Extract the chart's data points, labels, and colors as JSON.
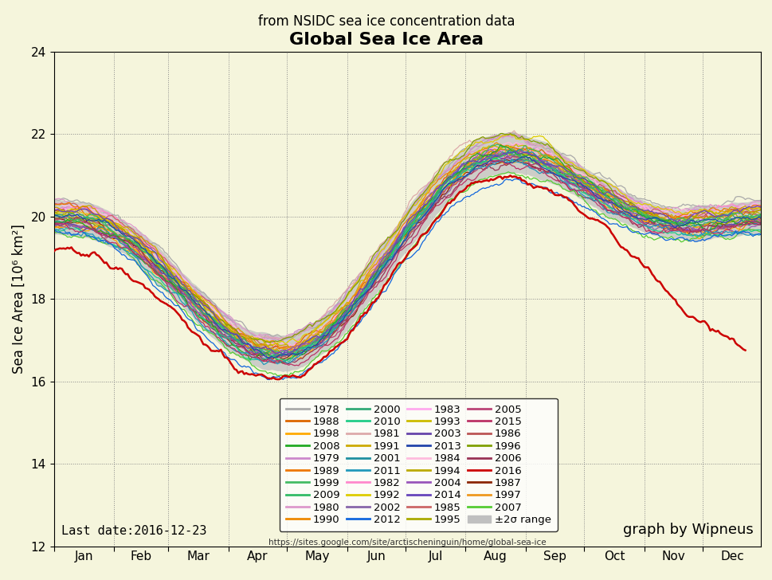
{
  "title_line1": "from NSIDC sea ice concentration data",
  "title_line2": "Global Sea Ice Area",
  "ylabel": "Sea Ice Area [10⁶ km²]",
  "ylim": [
    12,
    24
  ],
  "yticks": [
    12,
    14,
    16,
    18,
    20,
    22,
    24
  ],
  "background_color": "#f5f5dc",
  "last_date": "Last date:2016-12-23",
  "url": "https://sites.google.com/site/arctischeninguin/home/global-sea-ice",
  "graph_by": "graph by Wipneus",
  "months": [
    "Jan",
    "Feb",
    "Mar",
    "Apr",
    "May",
    "Jun",
    "Jul",
    "Aug",
    "Sep",
    "Oct",
    "Nov",
    "Dec"
  ],
  "month_starts": [
    1,
    32,
    60,
    91,
    121,
    152,
    182,
    213,
    244,
    274,
    305,
    335
  ],
  "year_colors": {
    "1978": "#aaaaaa",
    "1979": "#cc88cc",
    "1980": "#dd99cc",
    "1981": "#ddaaaa",
    "1982": "#ff88cc",
    "1983": "#ffaaee",
    "1984": "#ffbbdd",
    "1985": "#cc6666",
    "1986": "#bb5555",
    "1987": "#8B2500",
    "1988": "#dd6600",
    "1989": "#ee7700",
    "1990": "#ee8800",
    "1991": "#ccaa00",
    "1992": "#ddcc00",
    "1993": "#ccbb00",
    "1994": "#bbaa00",
    "1995": "#aaaa00",
    "1996": "#80a000",
    "1997": "#ee9920",
    "1998": "#ffaa00",
    "1999": "#44bb66",
    "2000": "#33aa77",
    "2001": "#2090a0",
    "2002": "#8866aa",
    "2003": "#6644aa",
    "2004": "#9955bb",
    "2005": "#bb4477",
    "2006": "#993355",
    "2007": "#55cc33",
    "2008": "#22aa22",
    "2009": "#33bb66",
    "2010": "#22cc88",
    "2011": "#2299bb",
    "2012": "#1166dd",
    "2013": "#2244aa",
    "2014": "#6644bb",
    "2015": "#bb3366",
    "2016": "#cc0000"
  }
}
